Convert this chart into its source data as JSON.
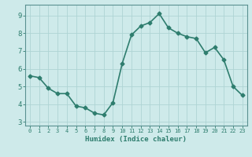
{
  "x": [
    0,
    1,
    2,
    3,
    4,
    5,
    6,
    7,
    8,
    9,
    10,
    11,
    12,
    13,
    14,
    15,
    16,
    17,
    18,
    19,
    20,
    21,
    22,
    23
  ],
  "y": [
    5.6,
    5.5,
    4.9,
    4.6,
    4.6,
    3.9,
    3.8,
    3.5,
    3.4,
    4.1,
    6.3,
    7.9,
    8.4,
    8.6,
    9.1,
    8.3,
    8.0,
    7.8,
    7.7,
    6.9,
    7.2,
    6.5,
    5.0,
    4.5
  ],
  "xlabel": "Humidex (Indice chaleur)",
  "ylim": [
    2.8,
    9.6
  ],
  "xlim": [
    -0.5,
    23.5
  ],
  "yticks": [
    3,
    4,
    5,
    6,
    7,
    8,
    9
  ],
  "xticks": [
    0,
    1,
    2,
    3,
    4,
    5,
    6,
    7,
    8,
    9,
    10,
    11,
    12,
    13,
    14,
    15,
    16,
    17,
    18,
    19,
    20,
    21,
    22,
    23
  ],
  "line_color": "#2e7d6e",
  "bg_color": "#ceeaea",
  "grid_color": "#aed4d4",
  "tick_color": "#2e7d6e",
  "label_color": "#2e7d6e",
  "marker": "D",
  "marker_size": 2.5,
  "line_width": 1.2,
  "spine_color": "#5a9090"
}
